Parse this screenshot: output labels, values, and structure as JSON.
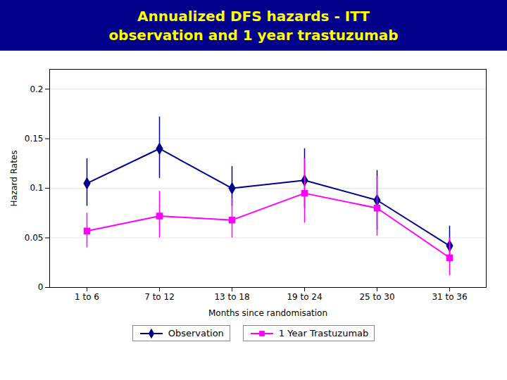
{
  "chart_data": {
    "type": "line",
    "title": "Annualized DFS hazards - ITT",
    "subtitle": "observation and 1 year trastuzumab",
    "x_label": "Months since randomisation",
    "y_label": "Hazard Rates",
    "categories": [
      "1 to 6",
      "7 to 12",
      "13 to 18",
      "19 to 24",
      "25 to 30",
      "31 to 36"
    ],
    "series": [
      {
        "name": "Observation",
        "color": "#00008B",
        "marker": "diamond",
        "values": [
          0.105,
          0.14,
          0.1,
          0.108,
          0.088,
          0.042
        ],
        "lower": [
          0.082,
          0.11,
          0.082,
          0.08,
          0.058,
          0.025
        ],
        "upper": [
          0.13,
          0.172,
          0.122,
          0.14,
          0.118,
          0.062
        ]
      },
      {
        "name": "1 Year Trastuzumab",
        "color": "#FF00FF",
        "marker": "square",
        "values": [
          0.057,
          0.072,
          0.068,
          0.095,
          0.08,
          0.03
        ],
        "lower": [
          0.04,
          0.05,
          0.05,
          0.065,
          0.052,
          0.012
        ],
        "upper": [
          0.075,
          0.097,
          0.09,
          0.13,
          0.112,
          0.05
        ]
      }
    ],
    "ylim": [
      0,
      0.22
    ],
    "yticks": [
      0,
      0.05,
      0.1,
      0.15,
      0.2
    ],
    "grid": true,
    "legend": "bottom"
  }
}
